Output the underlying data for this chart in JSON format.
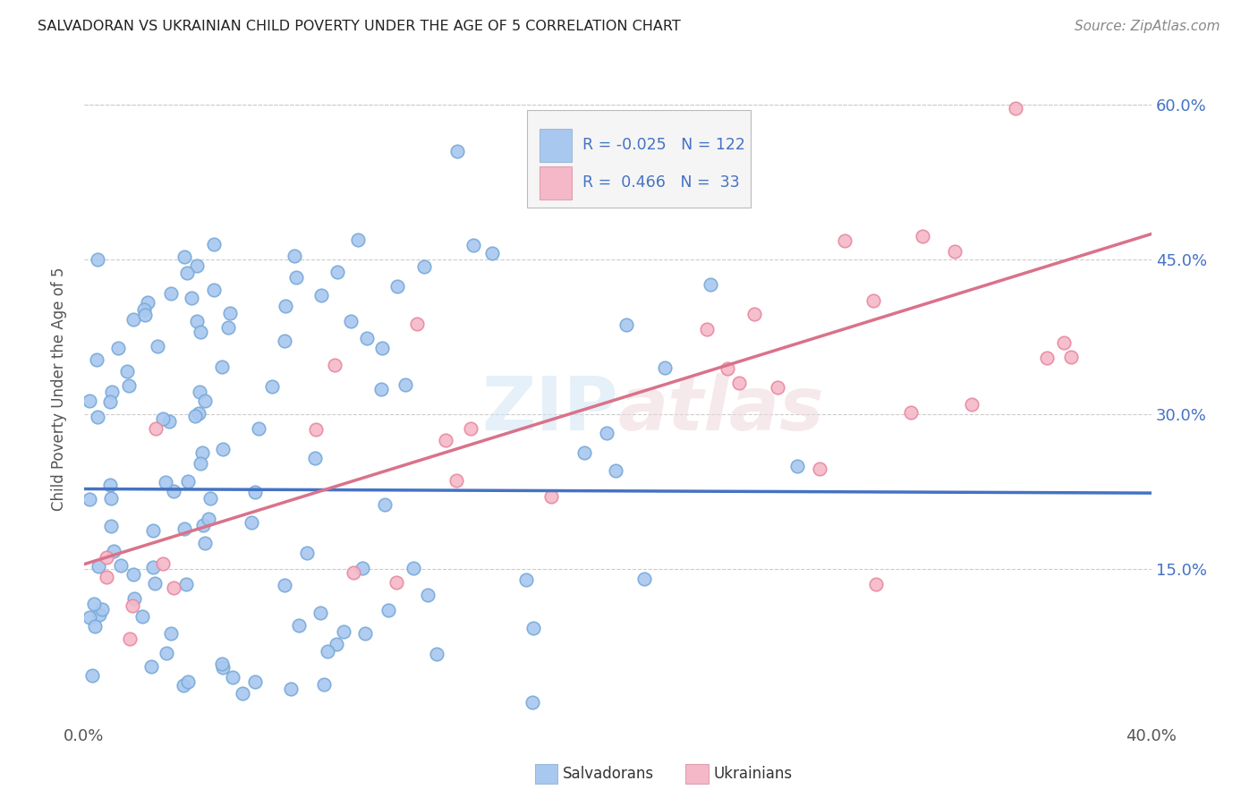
{
  "title": "SALVADORAN VS UKRAINIAN CHILD POVERTY UNDER THE AGE OF 5 CORRELATION CHART",
  "source": "Source: ZipAtlas.com",
  "ylabel": "Child Poverty Under the Age of 5",
  "ytick_values": [
    0.15,
    0.3,
    0.45,
    0.6
  ],
  "ytick_labels": [
    "15.0%",
    "30.0%",
    "45.0%",
    "60.0%"
  ],
  "xlim": [
    0.0,
    0.4
  ],
  "ylim": [
    0.0,
    0.65
  ],
  "salvadoran_color": "#A8C8F0",
  "ukrainian_color": "#F5B8C8",
  "salvadoran_edge_color": "#7AAAD8",
  "ukrainian_edge_color": "#E88AA0",
  "salvadoran_line_color": "#4472C4",
  "ukrainian_line_color": "#D9728A",
  "watermark": "ZIPatlas",
  "legend_R_salvadoran": "-0.025",
  "legend_N_salvadoran": "122",
  "legend_R_ukrainian": "0.466",
  "legend_N_ukrainian": "33",
  "sal_line_x0": 0.0,
  "sal_line_x1": 0.4,
  "sal_line_y0": 0.228,
  "sal_line_y1": 0.224,
  "ukr_line_x0": 0.0,
  "ukr_line_x1": 0.4,
  "ukr_line_y0": 0.155,
  "ukr_line_y1": 0.475
}
